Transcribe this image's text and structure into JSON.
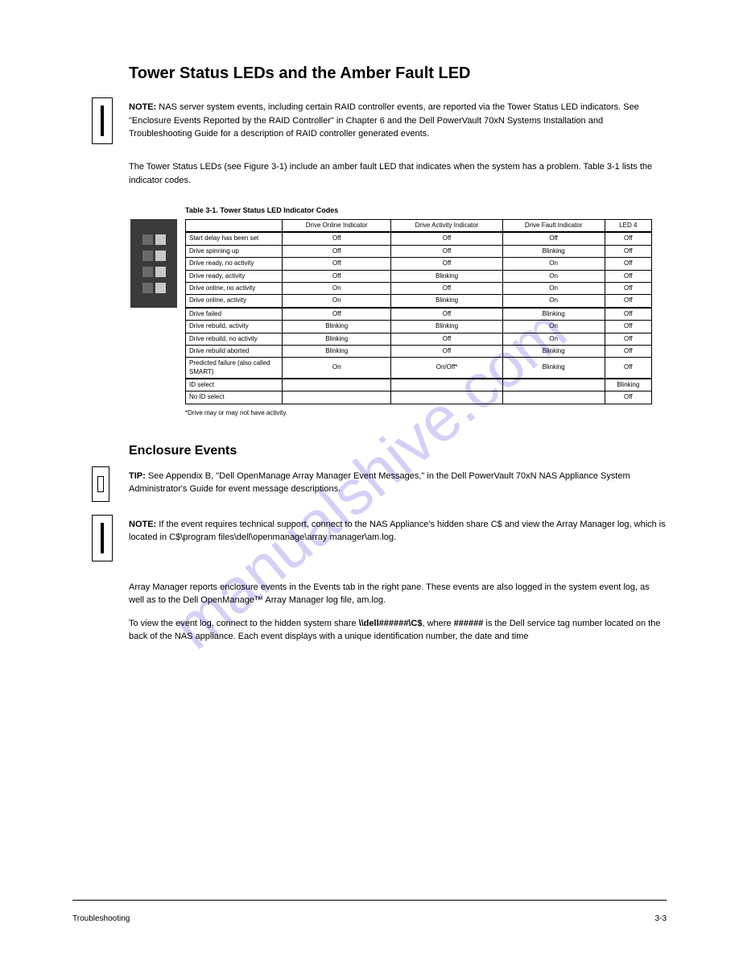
{
  "watermark_text": "manualshive.com",
  "heading": "Tower Status LEDs and the Amber Fault LED",
  "note_label": "NOTE:",
  "note_body": " NAS server system events, including certain RAID controller events, are reported via the Tower Status LED indicators. See \"Enclosure Events Reported by the RAID Controller\" in Chapter 6 and the Dell PowerVault 70xN Systems Installation and Troubleshooting Guide for a description of RAID controller generated events.",
  "led_intro": "The Tower Status LEDs (see Figure 3-1) include an amber fault LED that indicates when the system has a problem. Table 3-1 lists the indicator codes.",
  "table_caption": "Table 3-1. Tower Status LED Indicator Codes",
  "table_headers": [
    "Drive Online Indicator",
    "Drive Activity Indicator",
    "Drive Fault Indicator",
    "LED 4"
  ],
  "rows": [
    {
      "label": "Start delay has been set",
      "cells": [
        "Off",
        "Off",
        "Off",
        "Off"
      ]
    },
    {
      "label": "Drive spinning up",
      "cells": [
        "Off",
        "Off",
        "Blinking",
        "Off"
      ]
    },
    {
      "label": "Drive ready, no activity",
      "cells": [
        "Off",
        "Off",
        "On",
        "Off"
      ]
    },
    {
      "label": "Drive ready, activity",
      "cells": [
        "Off",
        "Blinking",
        "On",
        "Off"
      ]
    },
    {
      "label": "Drive online, no activity",
      "cells": [
        "On",
        "Off",
        "On",
        "Off"
      ]
    },
    {
      "label": "Drive online, activity",
      "cells": [
        "On",
        "Blinking",
        "On",
        "Off"
      ]
    },
    {
      "label": "Drive failed",
      "cells": [
        "Off",
        "Off",
        "Blinking",
        "Off"
      ],
      "thick": true
    },
    {
      "label": "Drive rebuild, activity",
      "cells": [
        "Blinking",
        "Blinking",
        "On",
        "Off"
      ]
    },
    {
      "label": "Drive rebuild, no activity",
      "cells": [
        "Blinking",
        "Off",
        "On",
        "Off"
      ]
    },
    {
      "label": "Drive rebuild aborted",
      "cells": [
        "Blinking",
        "Off",
        "Blinking",
        "Off"
      ]
    },
    {
      "label": "Predicted failure (also called SMART)",
      "cells": [
        "On",
        "On/Off*",
        "Blinking",
        "Off"
      ]
    },
    {
      "label": "ID select",
      "cells": [
        "",
        "",
        "",
        "Blinking"
      ],
      "thick": true
    },
    {
      "label": "No ID select",
      "cells": [
        "",
        "",
        "",
        "Off"
      ]
    }
  ],
  "table_footnote": "*Drive may or may not have activity.",
  "subheading": "Enclosure Events",
  "tip_label": "TIP:",
  "tip_body": " See Appendix B, \"Dell OpenManage Array Manager Event Messages,\" in the Dell PowerVault 70xN NAS Appliance System Administrator's Guide for event message descriptions.",
  "note2_label": "NOTE:",
  "note2_body": " If the event requires technical support, connect to the NAS Appliance's hidden share C$ and view the Array Manager log, which is located in C$\\program files\\dell\\openmanage\\array manager\\am.log.",
  "para1": "Array Manager reports enclosure events in the Events tab in the right pane. These events are also logged in the system event log, as well as to the Dell OpenManage™ Array Manager log file, am.log.",
  "para2_prefix": "To view the event log, connect to the hidden system share ",
  "para2_code1": "\\\\dell######\\C$",
  "para2_mid": ", where ",
  "para2_code2": "######",
  "para2_suffix": " is the Dell service tag number located on the back of the NAS appliance. Each event displays with a unique identification number, the date and time",
  "footer_left": "Troubleshooting",
  "footer_right": "3-3"
}
